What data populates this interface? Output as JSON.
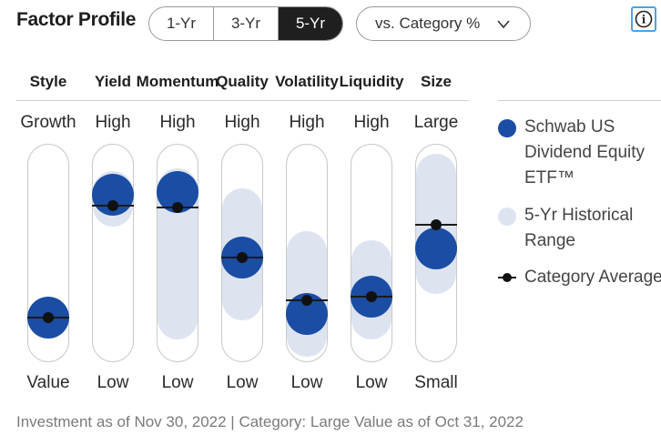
{
  "title": "Factor Profile",
  "period_tabs": [
    {
      "label": "1-Yr",
      "active": false
    },
    {
      "label": "3-Yr",
      "active": false
    },
    {
      "label": "5-Yr",
      "active": true
    }
  ],
  "comparison_dropdown": {
    "selected": "vs. Category %",
    "icon": "chevron-down-icon"
  },
  "info_button": {
    "icon": "info-icon",
    "glyph": "i"
  },
  "factors": [
    {
      "name": "Style",
      "high_label": "Growth",
      "low_label": "Value",
      "fund": 0.2,
      "range": [
        0.12,
        0.28
      ],
      "category_avg": 0.2
    },
    {
      "name": "Yield",
      "high_label": "High",
      "low_label": "Low",
      "fund": 0.77,
      "range": [
        0.62,
        0.88
      ],
      "category_avg": 0.72
    },
    {
      "name": "Momentum",
      "high_label": "High",
      "low_label": "Low",
      "fund": 0.78,
      "range": [
        0.1,
        0.89
      ],
      "category_avg": 0.71
    },
    {
      "name": "Quality",
      "high_label": "High",
      "low_label": "Low",
      "fund": 0.48,
      "range": [
        0.19,
        0.8
      ],
      "category_avg": 0.48
    },
    {
      "name": "Volatility",
      "high_label": "High",
      "low_label": "Low",
      "fund": 0.22,
      "range": [
        0.02,
        0.6
      ],
      "category_avg": 0.28
    },
    {
      "name": "Liquidity",
      "high_label": "High",
      "low_label": "Low",
      "fund": 0.3,
      "range": [
        0.1,
        0.56
      ],
      "category_avg": 0.3
    },
    {
      "name": "Size",
      "high_label": "Large",
      "low_label": "Small",
      "fund": 0.52,
      "range": [
        0.31,
        0.96
      ],
      "category_avg": 0.63
    }
  ],
  "legend": {
    "fund": "Schwab US Dividend Equity ETF™",
    "range": "5-Yr Historical Range",
    "average": "Category Average"
  },
  "colors": {
    "fund": "#1a4da3",
    "range": "#dde4f0",
    "average": "#111111",
    "accent_info": "#4aa3e6"
  },
  "footer": "Investment as of Nov 30, 2022 | Category: Large Value as of Oct 31, 2022"
}
